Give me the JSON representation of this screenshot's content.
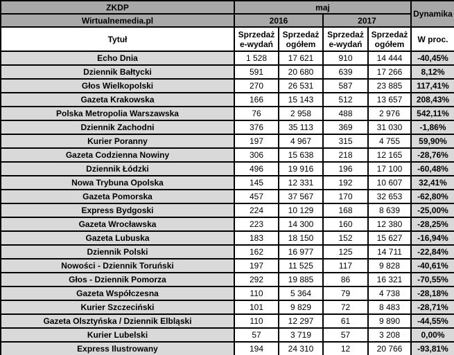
{
  "header": {
    "org": "ZKDP",
    "source": "Wirtualnemedia.pl",
    "month": "maj",
    "year_2016": "2016",
    "year_2017": "2017",
    "dynamika": "Dynamika",
    "title_column": "Tytuł",
    "sub_e_wydan": "Sprzedaż\ne-wydań",
    "sub_ogolem": "Sprzedaż\nogółem",
    "percent_column": "W proc."
  },
  "colors": {
    "header_bg": "#a8a8a8",
    "label_bg": "#d9d9d9",
    "numeric_bg": "#ffffff",
    "border": "#000000"
  },
  "rows": [
    {
      "title": "Echo Dnia",
      "e2016": "1 528",
      "total2016": "17 621",
      "e2017": "910",
      "total2017": "14 444",
      "dynamics": "-40,45%"
    },
    {
      "title": "Dziennik Bałtycki",
      "e2016": "591",
      "total2016": "20 680",
      "e2017": "639",
      "total2017": "17 266",
      "dynamics": "8,12%"
    },
    {
      "title": "Głos Wielkopolski",
      "e2016": "270",
      "total2016": "26 531",
      "e2017": "587",
      "total2017": "23 885",
      "dynamics": "117,41%"
    },
    {
      "title": "Gazeta Krakowska",
      "e2016": "166",
      "total2016": "15 143",
      "e2017": "512",
      "total2017": "13 657",
      "dynamics": "208,43%"
    },
    {
      "title": "Polska Metropolia Warszawska",
      "e2016": "76",
      "total2016": "2 958",
      "e2017": "488",
      "total2017": "2 976",
      "dynamics": "542,11%"
    },
    {
      "title": "Dziennik Zachodni",
      "e2016": "376",
      "total2016": "35 113",
      "e2017": "369",
      "total2017": "31 030",
      "dynamics": "-1,86%"
    },
    {
      "title": "Kurier Poranny",
      "e2016": "197",
      "total2016": "4 967",
      "e2017": "315",
      "total2017": "4 755",
      "dynamics": "59,90%"
    },
    {
      "title": "Gazeta Codzienna Nowiny",
      "e2016": "306",
      "total2016": "15 638",
      "e2017": "218",
      "total2017": "12 165",
      "dynamics": "-28,76%"
    },
    {
      "title": "Dziennik Łódzki",
      "e2016": "496",
      "total2016": "19 916",
      "e2017": "196",
      "total2017": "17 100",
      "dynamics": "-60,48%"
    },
    {
      "title": "Nowa Trybuna Opolska",
      "e2016": "145",
      "total2016": "12 331",
      "e2017": "192",
      "total2017": "10 607",
      "dynamics": "32,41%"
    },
    {
      "title": "Gazeta Pomorska",
      "e2016": "457",
      "total2016": "37 567",
      "e2017": "170",
      "total2017": "32 653",
      "dynamics": "-62,80%"
    },
    {
      "title": "Express Bydgoski",
      "e2016": "224",
      "total2016": "10 129",
      "e2017": "168",
      "total2017": "8 639",
      "dynamics": "-25,00%"
    },
    {
      "title": "Gazeta Wrocławska",
      "e2016": "223",
      "total2016": "14 300",
      "e2017": "160",
      "total2017": "12 380",
      "dynamics": "-28,25%"
    },
    {
      "title": "Gazeta Lubuska",
      "e2016": "183",
      "total2016": "18 150",
      "e2017": "152",
      "total2017": "15 627",
      "dynamics": "-16,94%"
    },
    {
      "title": "Dziennik Polski",
      "e2016": "162",
      "total2016": "16 977",
      "e2017": "125",
      "total2017": "14 711",
      "dynamics": "-22,84%"
    },
    {
      "title": "Nowości - Dziennik Toruński",
      "e2016": "197",
      "total2016": "11 525",
      "e2017": "117",
      "total2017": "9 828",
      "dynamics": "-40,61%"
    },
    {
      "title": "Głos - Dziennik Pomorza",
      "e2016": "292",
      "total2016": "19 885",
      "e2017": "86",
      "total2017": "16 321",
      "dynamics": "-70,55%"
    },
    {
      "title": "Gazeta Współczesna",
      "e2016": "110",
      "total2016": "5 364",
      "e2017": "79",
      "total2017": "4 738",
      "dynamics": "-28,18%"
    },
    {
      "title": "Kurier Szczeciński",
      "e2016": "101",
      "total2016": "9 829",
      "e2017": "72",
      "total2017": "8 483",
      "dynamics": "-28,71%"
    },
    {
      "title": "Gazeta Olsztyńska / Dziennik Elbląski",
      "e2016": "110",
      "total2016": "12 297",
      "e2017": "61",
      "total2017": "9 890",
      "dynamics": "-44,55%"
    },
    {
      "title": "Kurier Lubelski",
      "e2016": "57",
      "total2016": "3 719",
      "e2017": "57",
      "total2017": "3 208",
      "dynamics": "0,00%"
    },
    {
      "title": "Express Ilustrowany",
      "e2016": "194",
      "total2016": "24 310",
      "e2017": "12",
      "total2017": "20 766",
      "dynamics": "-93,81%"
    }
  ]
}
